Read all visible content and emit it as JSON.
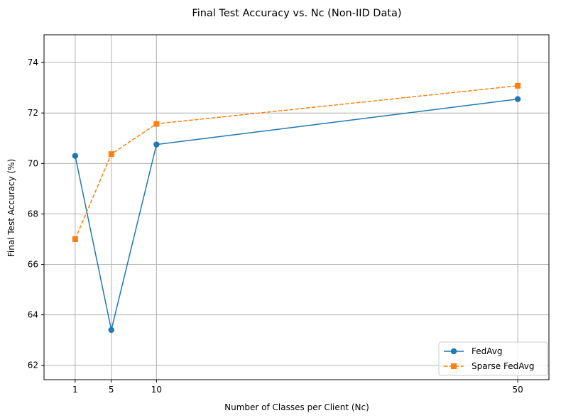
{
  "chart_data": {
    "type": "line",
    "title": "Final Test Accuracy vs. Nc (Non-IID Data)",
    "xlabel": "Number of Classes per Client (Nc)",
    "ylabel": "Final Test Accuracy (%)",
    "x": [
      1,
      5,
      10,
      50
    ],
    "xticks": [
      1,
      5,
      10,
      50
    ],
    "yticks": [
      62,
      64,
      66,
      68,
      70,
      72,
      74
    ],
    "xlim": [
      -2.45,
      53.45
    ],
    "ylim": [
      61.43,
      75.1
    ],
    "grid": true,
    "legend_position": "lower right",
    "series": [
      {
        "name": "FedAvg",
        "values": [
          70.3,
          63.4,
          70.75,
          72.55
        ],
        "color": "#1f77b4",
        "marker": "circle",
        "linestyle": "solid"
      },
      {
        "name": "Sparse FedAvg",
        "values": [
          67.0,
          70.37,
          71.57,
          73.08
        ],
        "color": "#ff7f0e",
        "marker": "square",
        "linestyle": "dashed"
      }
    ]
  }
}
